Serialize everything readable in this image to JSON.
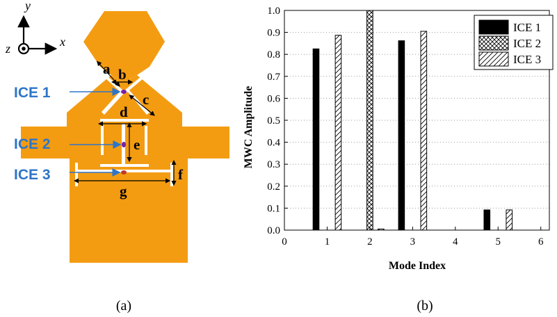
{
  "panel_a": {
    "caption": "(a)",
    "axes": {
      "y": "y",
      "x": "x",
      "z": "z"
    },
    "dims": {
      "a": "a",
      "b": "b",
      "c": "c",
      "d": "d",
      "e": "e",
      "f": "f",
      "g": "g"
    },
    "ice_labels": [
      "ICE 1",
      "ICE 2",
      "ICE 3"
    ],
    "colors": {
      "antenna": "#F39C12",
      "ice_label": "#2E75C9",
      "arrow": "#2E75C9",
      "port": "#7B1FA2",
      "port_red": "#C0392B"
    }
  },
  "panel_b": {
    "caption": "(b)",
    "bar_colors": [
      "#000000",
      "pattern-crosshatch",
      "pattern-diagonal"
    ]
  },
  "chart_data": {
    "type": "bar",
    "x": [
      1,
      2,
      3,
      4,
      5,
      6
    ],
    "categories": [
      "1",
      "2",
      "3",
      "4",
      "5",
      "6"
    ],
    "series": [
      {
        "name": "ICE 1",
        "values": [
          0.825,
          0.0,
          0.862,
          0.0,
          0.092,
          0.0
        ]
      },
      {
        "name": "ICE 2",
        "values": [
          0.0,
          1.0,
          0.0,
          0.0,
          0.0,
          0.0
        ]
      },
      {
        "name": "ICE 3",
        "values": [
          0.887,
          0.005,
          0.905,
          0.0,
          0.092,
          0.0
        ]
      }
    ],
    "xlabel": "Mode Index",
    "ylabel": "MWC Amplitude",
    "xlim": [
      0,
      6.2
    ],
    "ylim": [
      0,
      1.0
    ],
    "xticks": [
      "0",
      "1",
      "2",
      "3",
      "4",
      "5",
      "6"
    ],
    "yticks": [
      "0.0",
      "0.1",
      "0.2",
      "0.3",
      "0.4",
      "0.5",
      "0.6",
      "0.7",
      "0.8",
      "0.9",
      "1.0"
    ],
    "grid": "dotted horizontal",
    "legend": "top-right"
  }
}
